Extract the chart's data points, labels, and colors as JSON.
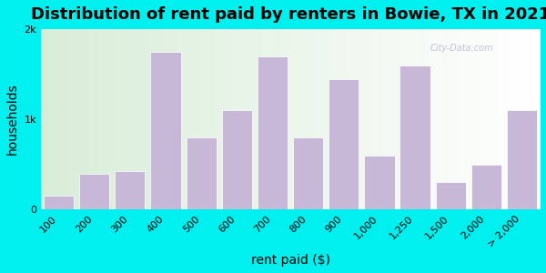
{
  "title": "Distribution of rent paid by renters in Bowie, TX in 2021",
  "xlabel": "rent paid ($)",
  "ylabel": "households",
  "bar_color": "#C8B8D8",
  "background_outer": "#00EFEF",
  "background_inner_left": "#D8EED8",
  "background_inner_right": "#FFFFFF",
  "categories": [
    "100",
    "200",
    "300",
    "400",
    "500",
    "600",
    "700",
    "800",
    "900",
    "1,000",
    "1,250",
    "1,500",
    "2,000",
    "> 2,000"
  ],
  "values": [
    150,
    400,
    430,
    1750,
    800,
    1100,
    1700,
    800,
    1450,
    600,
    1600,
    300,
    500,
    1100
  ],
  "ylim": [
    0,
    2000
  ],
  "yticks": [
    0,
    1000,
    2000
  ],
  "ytick_labels": [
    "0",
    "1k",
    "2k"
  ],
  "watermark": "City-Data.com",
  "title_fontsize": 13,
  "axis_label_fontsize": 10,
  "tick_fontsize": 8
}
